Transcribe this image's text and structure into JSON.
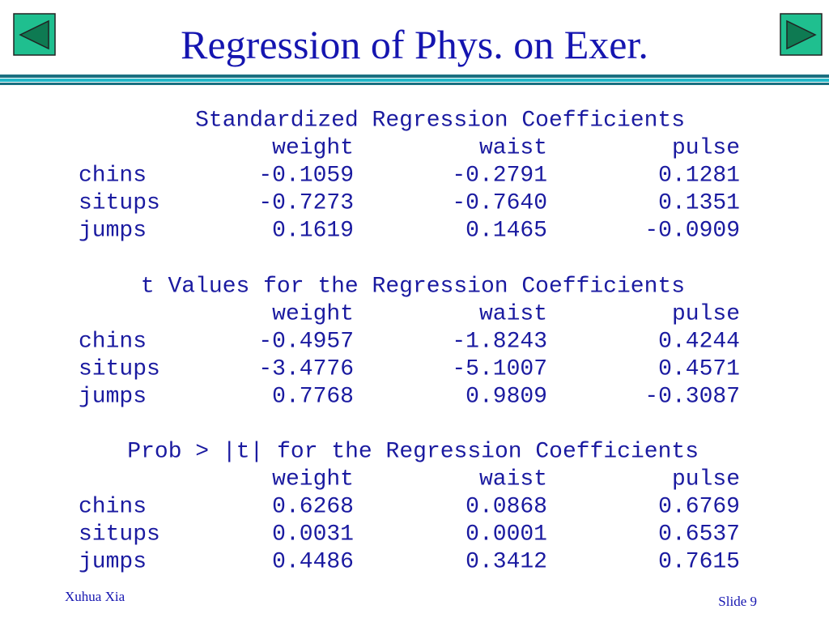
{
  "header": {
    "title": "Regression of Phys. on Exer."
  },
  "tables": [
    {
      "title": "Standardized Regression Coefficients",
      "columns": [
        "weight",
        "waist",
        "pulse"
      ],
      "rows": [
        {
          "label": "chins",
          "values": [
            "-0.1059",
            "-0.2791",
            "0.1281"
          ]
        },
        {
          "label": "situps",
          "values": [
            "-0.7273",
            "-0.7640",
            "0.1351"
          ]
        },
        {
          "label": "jumps",
          "values": [
            "0.1619",
            "0.1465",
            "-0.0909"
          ]
        }
      ]
    },
    {
      "title": "t Values for the Regression Coefficients",
      "columns": [
        "weight",
        "waist",
        "pulse"
      ],
      "rows": [
        {
          "label": "chins",
          "values": [
            "-0.4957",
            "-1.8243",
            "0.4244"
          ]
        },
        {
          "label": "situps",
          "values": [
            "-3.4776",
            "-5.1007",
            "0.4571"
          ]
        },
        {
          "label": "jumps",
          "values": [
            "0.7768",
            "0.9809",
            "-0.3087"
          ]
        }
      ]
    },
    {
      "title": "Prob > |t| for the Regression Coefficients",
      "columns": [
        "weight",
        "waist",
        "pulse"
      ],
      "rows": [
        {
          "label": "chins",
          "values": [
            "0.6268",
            "0.0868",
            "0.6769"
          ]
        },
        {
          "label": "situps",
          "values": [
            "0.0031",
            "0.0001",
            "0.6537"
          ]
        },
        {
          "label": "jumps",
          "values": [
            "0.4486",
            "0.3412",
            "0.7615"
          ]
        }
      ]
    }
  ],
  "footer": {
    "author": "Xuhua Xia",
    "slide": "Slide 9"
  }
}
